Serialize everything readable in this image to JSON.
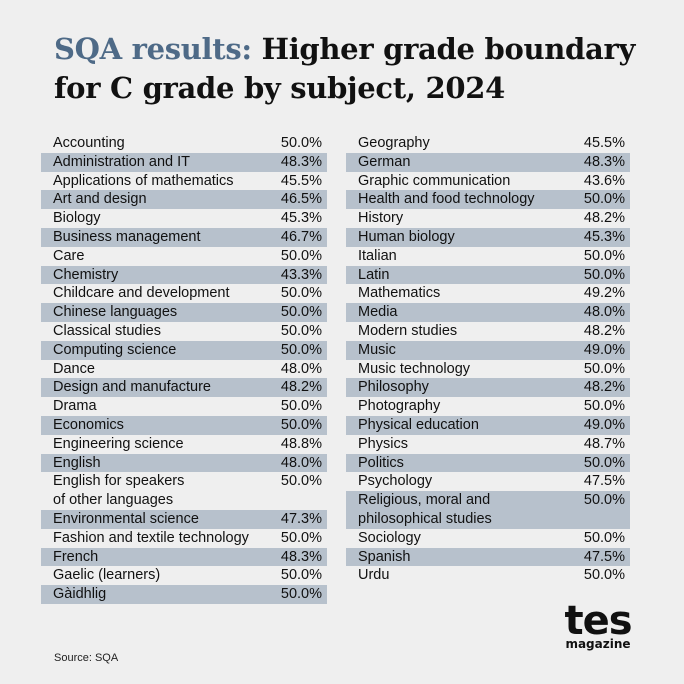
{
  "title": {
    "accent": "SQA results:",
    "rest": " Higher grade boundary for C grade by subject, 2024"
  },
  "source": "Source: SQA",
  "logo": {
    "main": "tes",
    "sub": "magazine"
  },
  "colors": {
    "accent": "#4e6a87",
    "row_shade": "#b7c1cc",
    "background": "#efefef"
  },
  "chart_data": {
    "type": "table",
    "columns": [
      [
        [
          "Accounting",
          "50.0%"
        ],
        [
          "Administration and IT",
          "48.3%"
        ],
        [
          "Applications of mathematics",
          "45.5%"
        ],
        [
          "Art and design",
          "46.5%"
        ],
        [
          "Biology",
          "45.3%"
        ],
        [
          "Business management",
          "46.7%"
        ],
        [
          "Care",
          "50.0%"
        ],
        [
          "Chemistry",
          "43.3%"
        ],
        [
          "Childcare and development",
          "50.0%"
        ],
        [
          "Chinese languages",
          "50.0%"
        ],
        [
          "Classical studies",
          "50.0%"
        ],
        [
          "Computing science",
          "50.0%"
        ],
        [
          "Dance",
          "48.0%"
        ],
        [
          "Design and manufacture",
          "48.2%"
        ],
        [
          "Drama",
          "50.0%"
        ],
        [
          "Economics",
          "50.0%"
        ],
        [
          "Engineering science",
          "48.8%"
        ],
        [
          "English",
          "48.0%"
        ],
        [
          "English for speakers\nof other languages",
          "50.0%"
        ],
        [
          "Environmental science",
          "47.3%"
        ],
        [
          "Fashion and textile technology",
          "50.0%"
        ],
        [
          "French",
          "48.3%"
        ],
        [
          "Gaelic (learners)",
          "50.0%"
        ],
        [
          "Gàidhlig",
          "50.0%"
        ]
      ],
      [
        [
          "Geography",
          "45.5%"
        ],
        [
          "German",
          "48.3%"
        ],
        [
          "Graphic communication",
          "43.6%"
        ],
        [
          "Health and food technology",
          "50.0%"
        ],
        [
          "History",
          "48.2%"
        ],
        [
          "Human biology",
          "45.3%"
        ],
        [
          "Italian",
          "50.0%"
        ],
        [
          "Latin",
          "50.0%"
        ],
        [
          "Mathematics",
          "49.2%"
        ],
        [
          "Media",
          "48.0%"
        ],
        [
          "Modern studies",
          "48.2%"
        ],
        [
          "Music",
          "49.0%"
        ],
        [
          "Music technology",
          "50.0%"
        ],
        [
          "Philosophy",
          "48.2%"
        ],
        [
          "Photography",
          "50.0%"
        ],
        [
          "Physical education",
          "49.0%"
        ],
        [
          "Physics",
          "48.7%"
        ],
        [
          "Politics",
          "50.0%"
        ],
        [
          "Psychology",
          "47.5%"
        ],
        [
          "Religious, moral and\nphilosophical studies",
          "50.0%"
        ],
        [
          "Sociology",
          "50.0%"
        ],
        [
          "Spanish",
          "47.5%"
        ],
        [
          "Urdu",
          "50.0%"
        ]
      ]
    ]
  }
}
